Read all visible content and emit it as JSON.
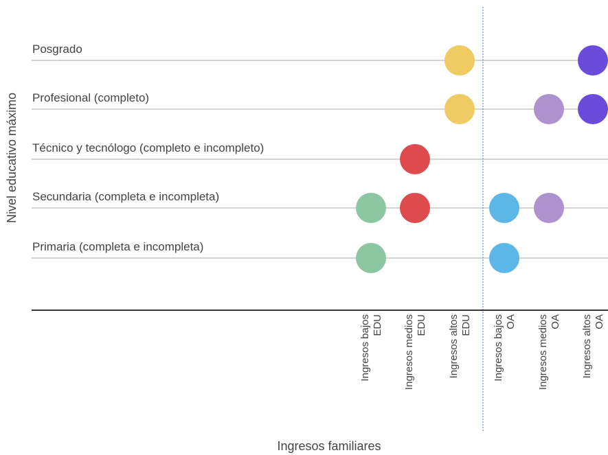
{
  "chart_data": {
    "type": "scatter",
    "title": "",
    "xlabel": "Ingresos familiares",
    "ylabel": "Nivel educativo máximo",
    "grid": true,
    "legend": "none",
    "x_categories": [
      [
        "Ingresos bajos",
        "EDU"
      ],
      [
        "Ingresos medios",
        "EDU"
      ],
      [
        "Ingresos altos",
        "EDU"
      ],
      [
        "Ingresos bajos",
        "OA"
      ],
      [
        "Ingresos medios",
        "OA"
      ],
      [
        "Ingresos altos",
        "OA"
      ]
    ],
    "y_categories": [
      "Primaria (completa e incompleta)",
      "Secundaria (completa e incompleta)",
      "Técnico y tecnólogo (completo e incompleto)",
      "Profesional (completo)",
      "Posgrado"
    ],
    "points": [
      {
        "x": 0,
        "y": 0,
        "color": "#8dc6a3"
      },
      {
        "x": 0,
        "y": 1,
        "color": "#8dc6a3"
      },
      {
        "x": 1,
        "y": 1,
        "color": "#de4b4e"
      },
      {
        "x": 1,
        "y": 2,
        "color": "#de4b4e"
      },
      {
        "x": 2,
        "y": 3,
        "color": "#f0cb63"
      },
      {
        "x": 2,
        "y": 4,
        "color": "#f0cb63"
      },
      {
        "x": 3,
        "y": 0,
        "color": "#5cb7e6"
      },
      {
        "x": 3,
        "y": 1,
        "color": "#5cb7e6"
      },
      {
        "x": 4,
        "y": 1,
        "color": "#ae92cd"
      },
      {
        "x": 4,
        "y": 3,
        "color": "#ae92cd"
      },
      {
        "x": 5,
        "y": 3,
        "color": "#6a4bdb"
      },
      {
        "x": 5,
        "y": 4,
        "color": "#6a4bdb"
      }
    ],
    "divider_color": "#4a6fd8",
    "gridline_color": "#aaaaaa",
    "baseline_color": "#333333"
  }
}
